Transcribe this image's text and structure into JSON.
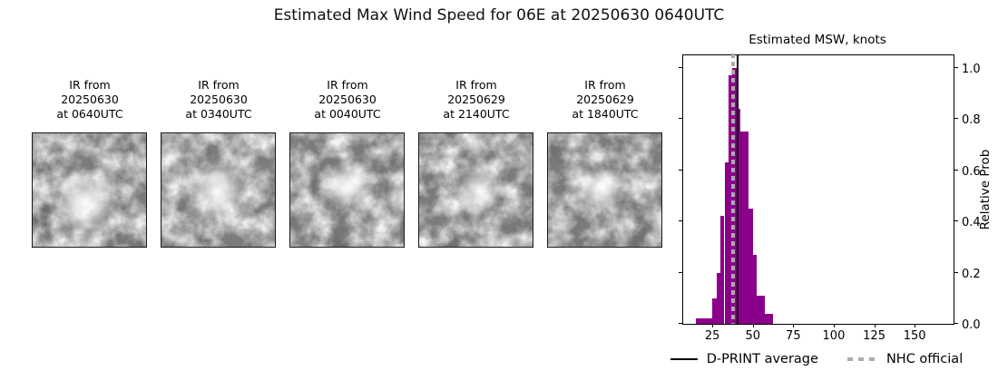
{
  "title": "Estimated Max Wind Speed for 06E at 20250630 0640UTC",
  "ir_panels": [
    {
      "label_lines": [
        "IR from",
        "20250630",
        "at 0640UTC"
      ]
    },
    {
      "label_lines": [
        "IR from",
        "20250630",
        "at 0340UTC"
      ]
    },
    {
      "label_lines": [
        "IR from",
        "20250630",
        "at 0040UTC"
      ]
    },
    {
      "label_lines": [
        "IR from",
        "20250629",
        "at 2140UTC"
      ]
    },
    {
      "label_lines": [
        "IR from",
        "20250629",
        "at 1840UTC"
      ]
    }
  ],
  "chart_data": {
    "type": "bar",
    "title": "Estimated MSW, knots",
    "ylabel": "Relative Prob",
    "xlabel": "",
    "bar_color": "#8B008B",
    "bin_width": 2.5,
    "bin_starts": [
      15,
      17.5,
      20,
      22.5,
      25,
      27.5,
      30,
      32.5,
      35,
      37.5,
      40,
      42.5,
      45,
      47.5,
      50,
      52.5,
      55,
      57.5,
      60
    ],
    "heights": [
      0.02,
      0.02,
      0.02,
      0.02,
      0.1,
      0.2,
      0.42,
      0.63,
      0.97,
      1.0,
      0.84,
      0.75,
      0.75,
      0.45,
      0.27,
      0.11,
      0.11,
      0.04,
      0.04
    ],
    "x_ticks": [
      25,
      50,
      75,
      100,
      125,
      150
    ],
    "y_ticks": [
      "0.0",
      "0.2",
      "0.4",
      "0.6",
      "0.8",
      "1.0"
    ],
    "xlim": [
      7,
      174
    ],
    "ylim": [
      0,
      1.048
    ],
    "grid": false,
    "legend_position": "below",
    "vlines": [
      {
        "name": "d-print-average",
        "value": 40.5,
        "style": "solid",
        "color": "#000000"
      },
      {
        "name": "nhc-official",
        "value": 38,
        "style": "dashed",
        "color": "#ababab"
      }
    ],
    "legend": [
      {
        "label": "D-PRINT average",
        "swatch": "solid-black-line"
      },
      {
        "label": "NHC official",
        "swatch": "dashed-gray-squares"
      }
    ]
  }
}
